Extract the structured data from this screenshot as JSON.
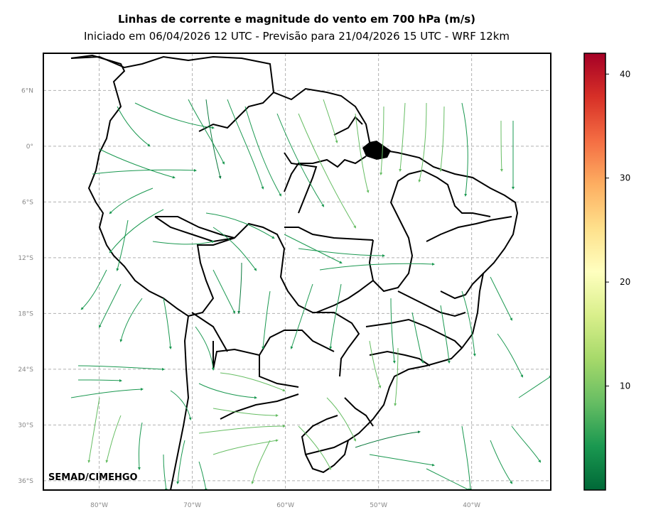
{
  "title": "Linhas de corrente e magnitude do vento em 700 hPa (m/s)",
  "subtitle": "Iniciado em 06/04/2026 12 UTC - Previsão para 21/04/2026 15 UTC - WRF 12km",
  "credit": "SEMAD/CIMEHGO",
  "map": {
    "lon_range": [
      -86,
      -31.5
    ],
    "lat_range": [
      -37,
      10
    ],
    "lon_ticks": [
      "80°W",
      "70°W",
      "60°W",
      "50°W",
      "40°W"
    ],
    "lon_tick_values": [
      -80,
      -70,
      -60,
      -50,
      -40
    ],
    "lat_ticks": [
      "6°N",
      "0°",
      "6°S",
      "12°S",
      "18°S",
      "24°S",
      "30°S",
      "36°S"
    ],
    "lat_tick_values": [
      6,
      0,
      -6,
      -12,
      -18,
      -24,
      -30,
      -36
    ],
    "grid": true,
    "grid_style": "dashed gray"
  },
  "colorbar": {
    "ticks": [
      "10",
      "20",
      "30",
      "40"
    ],
    "tick_values": [
      10,
      20,
      30,
      40
    ],
    "range": [
      0,
      42
    ],
    "colors": [
      "#006837",
      "#1a9850",
      "#66bd63",
      "#a6d96a",
      "#d9ef8b",
      "#ffffbf",
      "#fee08b",
      "#fdae61",
      "#f46d43",
      "#d73027",
      "#a50026"
    ]
  }
}
